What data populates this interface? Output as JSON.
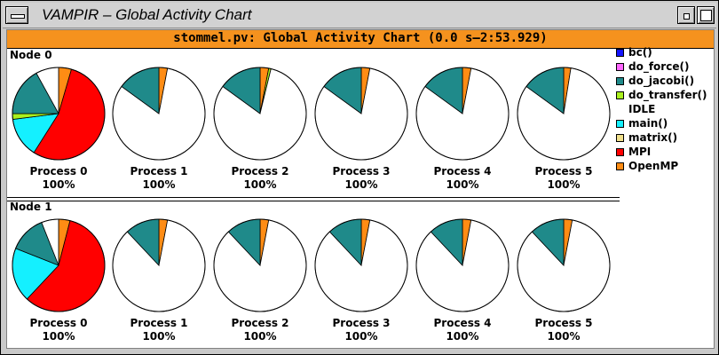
{
  "window": {
    "title": "VAMPIR – Global Activity Chart",
    "menu_icon": "window-menu-icon",
    "minimize_icon": "minimize-icon",
    "maximize_icon": "maximize-icon"
  },
  "header": {
    "text": "stommel.pv: Global Activity Chart (0.0 s–2:53.929)",
    "color": "#f5921e"
  },
  "legend": [
    {
      "name": "bc()",
      "color": "#1414ff"
    },
    {
      "name": "do_force()",
      "color": "#ff66ff"
    },
    {
      "name": "do_jacobi()",
      "color": "#1f8a8a"
    },
    {
      "name": "do_transfer()",
      "color": "#aaf01e"
    },
    {
      "name": "IDLE",
      "color": ""
    },
    {
      "name": "main()",
      "color": "#14f0ff"
    },
    {
      "name": "matrix()",
      "color": "#f0e08c"
    },
    {
      "name": "MPI",
      "color": "#ff0000"
    },
    {
      "name": "OpenMP",
      "color": "#ff8c14"
    }
  ],
  "chart_data": [
    {
      "type": "pie",
      "node": "Node 0",
      "series_order": [
        "OpenMP",
        "MPI",
        "do_transfer()",
        "main()",
        "do_jacobi()",
        "IDLE"
      ],
      "processes": [
        {
          "label": "Process 0",
          "percent": "100%",
          "slices": [
            {
              "name": "OpenMP",
              "value": 0.045
            },
            {
              "name": "MPI",
              "value": 0.545
            },
            {
              "name": "main()",
              "value": 0.14
            },
            {
              "name": "do_transfer()",
              "value": 0.02
            },
            {
              "name": "do_jacobi()",
              "value": 0.17
            },
            {
              "name": "IDLE",
              "value": 0.08
            }
          ]
        },
        {
          "label": "Process 1",
          "percent": "100%",
          "slices": [
            {
              "name": "OpenMP",
              "value": 0.03
            },
            {
              "name": "IDLE",
              "value": 0.82
            },
            {
              "name": "do_jacobi()",
              "value": 0.15
            }
          ]
        },
        {
          "label": "Process 2",
          "percent": "100%",
          "slices": [
            {
              "name": "OpenMP",
              "value": 0.03
            },
            {
              "name": "do_transfer()",
              "value": 0.008
            },
            {
              "name": "IDLE",
              "value": 0.812
            },
            {
              "name": "do_jacobi()",
              "value": 0.15
            }
          ]
        },
        {
          "label": "Process 3",
          "percent": "100%",
          "slices": [
            {
              "name": "OpenMP",
              "value": 0.03
            },
            {
              "name": "IDLE",
              "value": 0.82
            },
            {
              "name": "do_jacobi()",
              "value": 0.15
            }
          ]
        },
        {
          "label": "Process 4",
          "percent": "100%",
          "slices": [
            {
              "name": "OpenMP",
              "value": 0.03
            },
            {
              "name": "IDLE",
              "value": 0.82
            },
            {
              "name": "do_jacobi()",
              "value": 0.15
            }
          ]
        },
        {
          "label": "Process 5",
          "percent": "100%",
          "slices": [
            {
              "name": "OpenMP",
              "value": 0.025
            },
            {
              "name": "IDLE",
              "value": 0.825
            },
            {
              "name": "do_jacobi()",
              "value": 0.15
            }
          ]
        }
      ]
    },
    {
      "type": "pie",
      "node": "Node 1",
      "series_order": [
        "OpenMP",
        "MPI",
        "main()",
        "do_jacobi()",
        "IDLE"
      ],
      "processes": [
        {
          "label": "Process 0",
          "percent": "100%",
          "slices": [
            {
              "name": "OpenMP",
              "value": 0.04
            },
            {
              "name": "MPI",
              "value": 0.58
            },
            {
              "name": "main()",
              "value": 0.19
            },
            {
              "name": "do_jacobi()",
              "value": 0.13
            },
            {
              "name": "IDLE",
              "value": 0.06
            }
          ]
        },
        {
          "label": "Process 1",
          "percent": "100%",
          "slices": [
            {
              "name": "OpenMP",
              "value": 0.03
            },
            {
              "name": "IDLE",
              "value": 0.85
            },
            {
              "name": "do_jacobi()",
              "value": 0.12
            }
          ]
        },
        {
          "label": "Process 2",
          "percent": "100%",
          "slices": [
            {
              "name": "OpenMP",
              "value": 0.03
            },
            {
              "name": "IDLE",
              "value": 0.85
            },
            {
              "name": "do_jacobi()",
              "value": 0.12
            }
          ]
        },
        {
          "label": "Process 3",
          "percent": "100%",
          "slices": [
            {
              "name": "OpenMP",
              "value": 0.03
            },
            {
              "name": "IDLE",
              "value": 0.85
            },
            {
              "name": "do_jacobi()",
              "value": 0.12
            }
          ]
        },
        {
          "label": "Process 4",
          "percent": "100%",
          "slices": [
            {
              "name": "OpenMP",
              "value": 0.03
            },
            {
              "name": "IDLE",
              "value": 0.85
            },
            {
              "name": "do_jacobi()",
              "value": 0.12
            }
          ]
        },
        {
          "label": "Process 5",
          "percent": "100%",
          "slices": [
            {
              "name": "OpenMP",
              "value": 0.03
            },
            {
              "name": "IDLE",
              "value": 0.85
            },
            {
              "name": "do_jacobi()",
              "value": 0.12
            }
          ]
        }
      ]
    }
  ]
}
